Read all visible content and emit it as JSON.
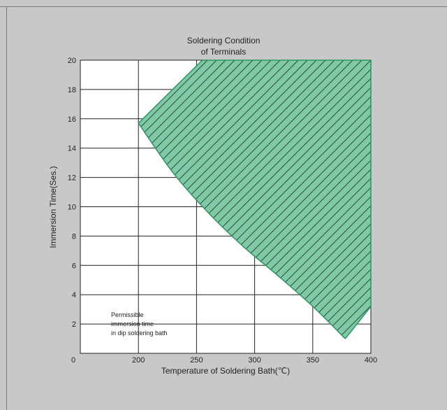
{
  "chart_data": {
    "type": "area",
    "title_lines": [
      "Soldering Condition",
      "of Terminals"
    ],
    "xlabel": "Temperature of Soldering  Bath(℃)",
    "ylabel": "Immersion Time(Ses.)",
    "xlim": [
      150,
      400
    ],
    "ylim": [
      0,
      20
    ],
    "x_ticks": [
      "0",
      "200",
      "250",
      "300",
      "350",
      "400"
    ],
    "y_ticks": [
      "2",
      "4",
      "6",
      "8",
      "10",
      "12",
      "14",
      "16",
      "18",
      "20"
    ],
    "grid": true,
    "region_fill": "#7fc9a7",
    "region_stroke": "#2f9a60",
    "boundary_lower": [
      {
        "x": 200,
        "y": 15.7
      },
      {
        "x": 230,
        "y": 12.3
      },
      {
        "x": 260,
        "y": 9.6
      },
      {
        "x": 290,
        "y": 7.3
      },
      {
        "x": 320,
        "y": 5.3
      },
      {
        "x": 350,
        "y": 3.2
      },
      {
        "x": 378,
        "y": 1.0
      }
    ],
    "boundary_upper": [
      {
        "x": 200,
        "y": 15.7
      },
      {
        "x": 255,
        "y": 20.0
      },
      {
        "x": 400,
        "y": 20.0
      },
      {
        "x": 400,
        "y": 3.2
      },
      {
        "x": 378,
        "y": 1.0
      }
    ],
    "annotation": [
      "Permissible",
      "immersion time",
      "in dip soldering bath"
    ]
  }
}
